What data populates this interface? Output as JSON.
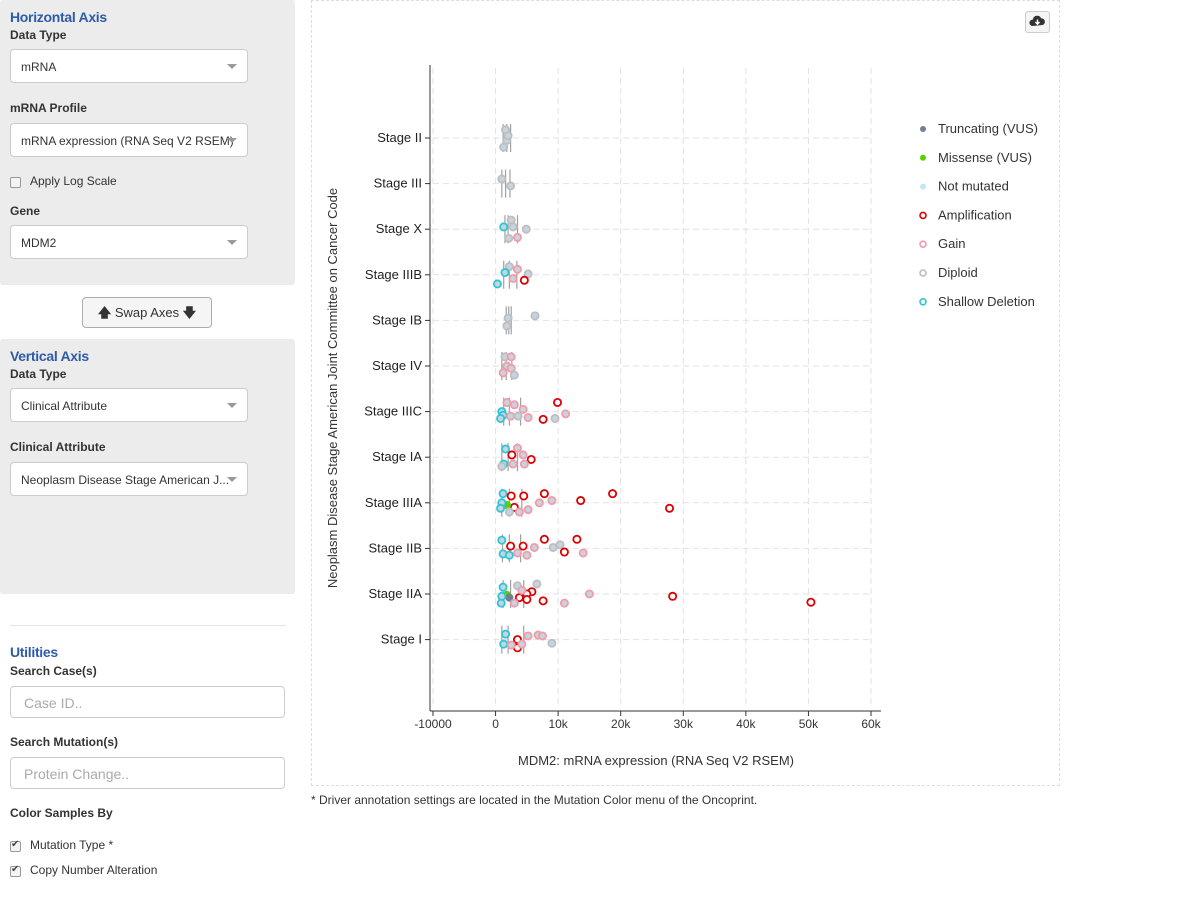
{
  "horizontal_axis": {
    "title": "Horizontal Axis",
    "data_type_label": "Data Type",
    "data_type_value": "mRNA",
    "profile_label": "mRNA Profile",
    "profile_value": "mRNA expression (RNA Seq V2 RSEM)",
    "log_scale_label": "Apply Log Scale",
    "log_scale_checked": false,
    "gene_label": "Gene",
    "gene_value": "MDM2"
  },
  "swap_button": {
    "label": "Swap Axes"
  },
  "vertical_axis": {
    "title": "Vertical Axis",
    "data_type_label": "Data Type",
    "data_type_value": "Clinical Attribute",
    "attribute_label": "Clinical Attribute",
    "attribute_value": "Neoplasm Disease Stage American J..."
  },
  "utilities": {
    "title": "Utilities",
    "search_cases_label": "Search Case(s)",
    "search_cases_placeholder": "Case ID..",
    "search_mutations_label": "Search Mutation(s)",
    "search_mutations_placeholder": "Protein Change..",
    "color_by_label": "Color Samples By",
    "color_options": [
      {
        "label": "Mutation Type *",
        "checked": true
      },
      {
        "label": "Copy Number Alteration",
        "checked": true
      }
    ]
  },
  "footnote": "* Driver annotation settings are located in the Mutation Color menu of the Oncoprint.",
  "chart_data": {
    "type": "scatter",
    "orientation": "horizontal-box-strip",
    "xlabel": "MDM2: mRNA expression (RNA Seq V2 RSEM)",
    "ylabel": "Neoplasm Disease Stage American Joint Committee on Cancer Code",
    "xlim": [
      -10000,
      60000
    ],
    "x_ticks": [
      {
        "value": -10000,
        "label": "-10000"
      },
      {
        "value": 0,
        "label": "0"
      },
      {
        "value": 10000,
        "label": "10k"
      },
      {
        "value": 20000,
        "label": "20k"
      },
      {
        "value": 30000,
        "label": "30k"
      },
      {
        "value": 40000,
        "label": "40k"
      },
      {
        "value": 50000,
        "label": "50k"
      },
      {
        "value": 60000,
        "label": "60k"
      }
    ],
    "categories": [
      "Stage II",
      "Stage III",
      "Stage X",
      "Stage IIIB",
      "Stage IB",
      "Stage IV",
      "Stage IIIC",
      "Stage IA",
      "Stage IIIA",
      "Stage IIB",
      "Stage IIA",
      "Stage I"
    ],
    "grid": true,
    "legend_position": "right",
    "legend": [
      {
        "label": "Truncating (VUS)",
        "color": "#708090",
        "style": "filled"
      },
      {
        "label": "Missense (VUS)",
        "color": "#53D400",
        "style": "filled"
      },
      {
        "label": "Not mutated",
        "color": "#c4e5f5",
        "style": "filled"
      },
      {
        "label": "Amplification",
        "color": "#dd0000",
        "style": "ring"
      },
      {
        "label": "Gain",
        "color": "#f39ba8",
        "style": "ring"
      },
      {
        "label": "Diploid",
        "color": "#bebebe",
        "style": "ring"
      },
      {
        "label": "Shallow Deletion",
        "color": "#2ec6d6",
        "style": "ring"
      }
    ],
    "boxes": [
      {
        "category": "Stage II",
        "q1": 1200,
        "median": 1800,
        "q3": 2400
      },
      {
        "category": "Stage III",
        "q1": 1000,
        "median": 1600,
        "q3": 2300
      },
      {
        "category": "Stage X",
        "q1": 1500,
        "median": 2000,
        "q3": 3500
      },
      {
        "category": "Stage IIIB",
        "q1": 1300,
        "median": 2200,
        "q3": 3400
      },
      {
        "category": "Stage IB",
        "q1": 1700,
        "median": 2100,
        "q3": 2500
      },
      {
        "category": "Stage IV",
        "q1": 1000,
        "median": 1700,
        "q3": 2600
      },
      {
        "category": "Stage IIIC",
        "q1": 1300,
        "median": 2200,
        "q3": 4000
      },
      {
        "category": "Stage IA",
        "q1": 1000,
        "median": 2000,
        "q3": 3500
      },
      {
        "category": "Stage IIIA",
        "q1": 1000,
        "median": 2200,
        "q3": 4200
      },
      {
        "category": "Stage IIB",
        "q1": 1100,
        "median": 2200,
        "q3": 4000
      },
      {
        "category": "Stage IIA",
        "q1": 1200,
        "median": 2400,
        "q3": 4500
      },
      {
        "category": "Stage I",
        "q1": 1000,
        "median": 2000,
        "q3": 4500
      }
    ],
    "points": [
      {
        "category": "Stage II",
        "x": 1600,
        "jitter": -0.18,
        "type": "Diploid"
      },
      {
        "category": "Stage II",
        "x": 1800,
        "jitter": 0.05,
        "type": "Diploid"
      },
      {
        "category": "Stage II",
        "x": 1300,
        "jitter": 0.2,
        "type": "Diploid"
      },
      {
        "category": "Stage II",
        "x": 2000,
        "jitter": -0.05,
        "type": "Diploid"
      },
      {
        "category": "Stage III",
        "x": 1000,
        "jitter": -0.1,
        "type": "Diploid"
      },
      {
        "category": "Stage III",
        "x": 2400,
        "jitter": 0.05,
        "type": "Diploid"
      },
      {
        "category": "Stage X",
        "x": 2500,
        "jitter": -0.2,
        "type": "Diploid"
      },
      {
        "category": "Stage X",
        "x": 2800,
        "jitter": -0.05,
        "type": "Diploid"
      },
      {
        "category": "Stage X",
        "x": 4900,
        "jitter": 0.0,
        "type": "Diploid"
      },
      {
        "category": "Stage X",
        "x": 1300,
        "jitter": -0.05,
        "type": "Shallow Deletion"
      },
      {
        "category": "Stage X",
        "x": 3500,
        "jitter": 0.18,
        "type": "Gain"
      },
      {
        "category": "Stage X",
        "x": 2100,
        "jitter": 0.2,
        "type": "Diploid"
      },
      {
        "category": "Stage IIIB",
        "x": 2200,
        "jitter": -0.18,
        "type": "Diploid"
      },
      {
        "category": "Stage IIIB",
        "x": 3500,
        "jitter": -0.12,
        "type": "Gain"
      },
      {
        "category": "Stage IIIB",
        "x": 5200,
        "jitter": -0.02,
        "type": "Diploid"
      },
      {
        "category": "Stage IIIB",
        "x": 1500,
        "jitter": -0.05,
        "type": "Shallow Deletion"
      },
      {
        "category": "Stage IIIB",
        "x": 4600,
        "jitter": 0.12,
        "type": "Amplification"
      },
      {
        "category": "Stage IIIB",
        "x": 300,
        "jitter": 0.2,
        "type": "Shallow Deletion"
      },
      {
        "category": "Stage IIIB",
        "x": 2800,
        "jitter": 0.08,
        "type": "Gain"
      },
      {
        "category": "Stage IB",
        "x": 2000,
        "jitter": -0.05,
        "type": "Diploid"
      },
      {
        "category": "Stage IB",
        "x": 6300,
        "jitter": -0.1,
        "type": "Diploid"
      },
      {
        "category": "Stage IB",
        "x": 1800,
        "jitter": 0.12,
        "type": "Diploid"
      },
      {
        "category": "Stage IV",
        "x": 1500,
        "jitter": -0.2,
        "type": "Diploid"
      },
      {
        "category": "Stage IV",
        "x": 2500,
        "jitter": -0.2,
        "type": "Gain"
      },
      {
        "category": "Stage IV",
        "x": 1800,
        "jitter": 0.0,
        "type": "Gain"
      },
      {
        "category": "Stage IV",
        "x": 2500,
        "jitter": 0.05,
        "type": "Gain"
      },
      {
        "category": "Stage IV",
        "x": 1200,
        "jitter": 0.15,
        "type": "Gain"
      },
      {
        "category": "Stage IV",
        "x": 3000,
        "jitter": 0.2,
        "type": "Diploid"
      },
      {
        "category": "Stage IIIC",
        "x": 1800,
        "jitter": -0.2,
        "type": "Gain"
      },
      {
        "category": "Stage IIIC",
        "x": 3000,
        "jitter": -0.15,
        "type": "Gain"
      },
      {
        "category": "Stage IIIC",
        "x": 9900,
        "jitter": -0.2,
        "type": "Amplification"
      },
      {
        "category": "Stage IIIC",
        "x": 4400,
        "jitter": -0.05,
        "type": "Gain"
      },
      {
        "category": "Stage IIIC",
        "x": 11200,
        "jitter": 0.05,
        "type": "Gain"
      },
      {
        "category": "Stage IIIC",
        "x": 9500,
        "jitter": 0.15,
        "type": "Diploid"
      },
      {
        "category": "Stage IIIC",
        "x": 7600,
        "jitter": 0.17,
        "type": "Amplification"
      },
      {
        "category": "Stage IIIC",
        "x": 5200,
        "jitter": 0.13,
        "type": "Gain"
      },
      {
        "category": "Stage IIIC",
        "x": 1000,
        "jitter": 0.0,
        "type": "Shallow Deletion"
      },
      {
        "category": "Stage IIIC",
        "x": 1200,
        "jitter": 0.08,
        "type": "Shallow Deletion"
      },
      {
        "category": "Stage IIIC",
        "x": 800,
        "jitter": 0.15,
        "type": "Shallow Deletion"
      },
      {
        "category": "Stage IIIC",
        "x": 2400,
        "jitter": 0.1,
        "type": "Gain"
      },
      {
        "category": "Stage IIIC",
        "x": 3600,
        "jitter": 0.1,
        "type": "Diploid"
      },
      {
        "category": "Stage IA",
        "x": 1600,
        "jitter": -0.18,
        "type": "Shallow Deletion"
      },
      {
        "category": "Stage IA",
        "x": 3500,
        "jitter": -0.2,
        "type": "Gain"
      },
      {
        "category": "Stage IA",
        "x": 2600,
        "jitter": -0.05,
        "type": "Amplification"
      },
      {
        "category": "Stage IA",
        "x": 4400,
        "jitter": -0.05,
        "type": "Gain"
      },
      {
        "category": "Stage IA",
        "x": 5700,
        "jitter": 0.05,
        "type": "Amplification"
      },
      {
        "category": "Stage IA",
        "x": 1300,
        "jitter": 0.15,
        "type": "Shallow Deletion"
      },
      {
        "category": "Stage IA",
        "x": 2800,
        "jitter": 0.15,
        "type": "Gain"
      },
      {
        "category": "Stage IA",
        "x": 4600,
        "jitter": 0.15,
        "type": "Gain"
      },
      {
        "category": "Stage IA",
        "x": 1000,
        "jitter": 0.2,
        "type": "Diploid"
      },
      {
        "category": "Stage IIIA",
        "x": 1200,
        "jitter": -0.2,
        "type": "Shallow Deletion"
      },
      {
        "category": "Stage IIIA",
        "x": 2500,
        "jitter": -0.15,
        "type": "Amplification"
      },
      {
        "category": "Stage IIIA",
        "x": 4500,
        "jitter": -0.15,
        "type": "Amplification"
      },
      {
        "category": "Stage IIIA",
        "x": 7800,
        "jitter": -0.2,
        "type": "Amplification"
      },
      {
        "category": "Stage IIIA",
        "x": 18700,
        "jitter": -0.2,
        "type": "Amplification"
      },
      {
        "category": "Stage IIIA",
        "x": 13600,
        "jitter": -0.05,
        "type": "Amplification"
      },
      {
        "category": "Stage IIIA",
        "x": 9000,
        "jitter": -0.05,
        "type": "Gain"
      },
      {
        "category": "Stage IIIA",
        "x": 7000,
        "jitter": 0.0,
        "type": "Gain"
      },
      {
        "category": "Stage IIIA",
        "x": 27800,
        "jitter": 0.12,
        "type": "Amplification"
      },
      {
        "category": "Stage IIIA",
        "x": 3000,
        "jitter": 0.1,
        "type": "Amplification"
      },
      {
        "category": "Stage IIIA",
        "x": 1800,
        "jitter": 0.05,
        "type": "Missense (VUS)"
      },
      {
        "category": "Stage IIIA",
        "x": 1000,
        "jitter": 0.0,
        "type": "Shallow Deletion"
      },
      {
        "category": "Stage IIIA",
        "x": 800,
        "jitter": 0.12,
        "type": "Shallow Deletion"
      },
      {
        "category": "Stage IIIA",
        "x": 5200,
        "jitter": 0.15,
        "type": "Gain"
      },
      {
        "category": "Stage IIIA",
        "x": 3800,
        "jitter": 0.2,
        "type": "Gain"
      },
      {
        "category": "Stage IIIA",
        "x": 2200,
        "jitter": 0.2,
        "type": "Diploid"
      },
      {
        "category": "Stage IIB",
        "x": 1000,
        "jitter": -0.18,
        "type": "Shallow Deletion"
      },
      {
        "category": "Stage IIB",
        "x": 7800,
        "jitter": -0.2,
        "type": "Amplification"
      },
      {
        "category": "Stage IIB",
        "x": 13000,
        "jitter": -0.2,
        "type": "Amplification"
      },
      {
        "category": "Stage IIB",
        "x": 2400,
        "jitter": -0.05,
        "type": "Amplification"
      },
      {
        "category": "Stage IIB",
        "x": 4400,
        "jitter": -0.05,
        "type": "Amplification"
      },
      {
        "category": "Stage IIB",
        "x": 9200,
        "jitter": -0.02,
        "type": "Diploid"
      },
      {
        "category": "Stage IIB",
        "x": 10300,
        "jitter": -0.08,
        "type": "Diploid"
      },
      {
        "category": "Stage IIB",
        "x": 6200,
        "jitter": -0.02,
        "type": "Gain"
      },
      {
        "category": "Stage IIB",
        "x": 11000,
        "jitter": 0.08,
        "type": "Amplification"
      },
      {
        "category": "Stage IIB",
        "x": 14000,
        "jitter": 0.1,
        "type": "Gain"
      },
      {
        "category": "Stage IIB",
        "x": 1200,
        "jitter": 0.12,
        "type": "Shallow Deletion"
      },
      {
        "category": "Stage IIB",
        "x": 2200,
        "jitter": 0.15,
        "type": "Shallow Deletion"
      },
      {
        "category": "Stage IIB",
        "x": 3500,
        "jitter": 0.1,
        "type": "Gain"
      },
      {
        "category": "Stage IIB",
        "x": 5000,
        "jitter": 0.15,
        "type": "Gain"
      },
      {
        "category": "Stage IIA",
        "x": 6600,
        "jitter": -0.22,
        "type": "Diploid"
      },
      {
        "category": "Stage IIA",
        "x": 1200,
        "jitter": -0.15,
        "type": "Shallow Deletion"
      },
      {
        "category": "Stage IIA",
        "x": 3500,
        "jitter": -0.18,
        "type": "Diploid"
      },
      {
        "category": "Stage IIA",
        "x": 5800,
        "jitter": -0.05,
        "type": "Amplification"
      },
      {
        "category": "Stage IIA",
        "x": 5000,
        "jitter": 0.0,
        "type": "Amplification"
      },
      {
        "category": "Stage IIA",
        "x": 15000,
        "jitter": 0.0,
        "type": "Gain"
      },
      {
        "category": "Stage IIA",
        "x": 28300,
        "jitter": 0.05,
        "type": "Amplification"
      },
      {
        "category": "Stage IIA",
        "x": 1800,
        "jitter": 0.02,
        "type": "Missense (VUS)"
      },
      {
        "category": "Stage IIA",
        "x": 2200,
        "jitter": 0.08,
        "type": "Truncating (VUS)"
      },
      {
        "category": "Stage IIA",
        "x": 3800,
        "jitter": 0.08,
        "type": "Amplification"
      },
      {
        "category": "Stage IIA",
        "x": 5000,
        "jitter": 0.12,
        "type": "Amplification"
      },
      {
        "category": "Stage IIA",
        "x": 7600,
        "jitter": 0.15,
        "type": "Amplification"
      },
      {
        "category": "Stage IIA",
        "x": 11000,
        "jitter": 0.2,
        "type": "Gain"
      },
      {
        "category": "Stage IIA",
        "x": 50400,
        "jitter": 0.18,
        "type": "Amplification"
      },
      {
        "category": "Stage IIA",
        "x": 900,
        "jitter": 0.2,
        "type": "Shallow Deletion"
      },
      {
        "category": "Stage IIA",
        "x": 1000,
        "jitter": 0.05,
        "type": "Shallow Deletion"
      },
      {
        "category": "Stage IIA",
        "x": 3000,
        "jitter": 0.2,
        "type": "Gain"
      },
      {
        "category": "Stage IIA",
        "x": 4200,
        "jitter": -0.08,
        "type": "Gain"
      },
      {
        "category": "Stage I",
        "x": 1600,
        "jitter": -0.12,
        "type": "Shallow Deletion"
      },
      {
        "category": "Stage I",
        "x": 5200,
        "jitter": -0.08,
        "type": "Gain"
      },
      {
        "category": "Stage I",
        "x": 6800,
        "jitter": -0.1,
        "type": "Gain"
      },
      {
        "category": "Stage I",
        "x": 7500,
        "jitter": -0.08,
        "type": "Gain"
      },
      {
        "category": "Stage I",
        "x": 3500,
        "jitter": 0.0,
        "type": "Amplification"
      },
      {
        "category": "Stage I",
        "x": 9000,
        "jitter": 0.08,
        "type": "Diploid"
      },
      {
        "category": "Stage I",
        "x": 1300,
        "jitter": 0.1,
        "type": "Shallow Deletion"
      },
      {
        "category": "Stage I",
        "x": 3500,
        "jitter": 0.18,
        "type": "Amplification"
      },
      {
        "category": "Stage I",
        "x": 2500,
        "jitter": 0.12,
        "type": "Gain"
      },
      {
        "category": "Stage I",
        "x": 4200,
        "jitter": 0.1,
        "type": "Gain"
      }
    ]
  }
}
